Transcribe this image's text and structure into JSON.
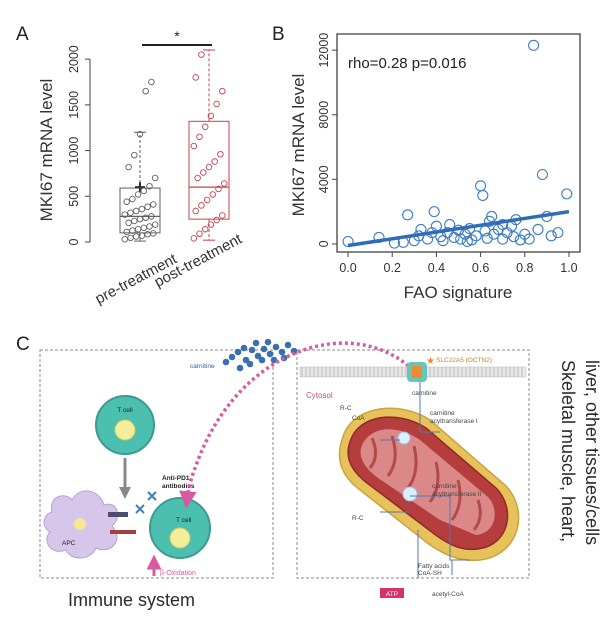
{
  "panel_labels": {
    "a": "A",
    "b": "B",
    "c": "C"
  },
  "colors": {
    "group1": "#606060",
    "group2": "#c9414a",
    "scatter": "#3c7cc2",
    "trend": "#2f6db8",
    "arrow": "#d85aa0",
    "tcell_fill": "#4bbfb0",
    "mito_outer": "#c24a4a",
    "mito_rim": "#e7c25a"
  },
  "chart_data": [
    {
      "type": "boxplot",
      "panel": "A",
      "title": "",
      "xlabel": "",
      "ylabel": "MKI67 mRNA level",
      "ylim": [
        0,
        2100
      ],
      "yticks": [
        0,
        500,
        1000,
        1500,
        2000
      ],
      "ytick_labels": [
        "0",
        "500",
        "1000",
        "1500",
        "2000"
      ],
      "categories": [
        "pre-treatment",
        "post-treatment"
      ],
      "boxes": [
        {
          "name": "pre-treatment",
          "color": "group1",
          "whisker_low": 10,
          "q1": 100,
          "median": 280,
          "q3": 590,
          "whisker_high": 1200,
          "mean": 600,
          "points": [
            30,
            45,
            60,
            70,
            85,
            95,
            110,
            125,
            140,
            155,
            170,
            190,
            210,
            230,
            250,
            265,
            280,
            300,
            320,
            340,
            360,
            385,
            410,
            440,
            470,
            520,
            560,
            610,
            700,
            820,
            950,
            1180,
            1650,
            1750
          ]
        },
        {
          "name": "post-treatment",
          "color": "group2",
          "whisker_low": 20,
          "q1": 250,
          "median": 600,
          "q3": 1320,
          "whisker_high": 2100,
          "mean": 0,
          "points": [
            40,
            90,
            140,
            190,
            240,
            290,
            340,
            400,
            460,
            520,
            580,
            640,
            700,
            760,
            820,
            880,
            960,
            1050,
            1150,
            1260,
            1380,
            1510,
            1650,
            1800,
            2050
          ]
        }
      ],
      "significance": {
        "label": "*",
        "between": [
          "pre-treatment",
          "post-treatment"
        ],
        "level": 2200
      }
    },
    {
      "type": "scatter",
      "panel": "B",
      "title": "",
      "xlabel": "FAO signature",
      "ylabel": "MKI67 mRNA level",
      "xlim": [
        -0.05,
        1.05
      ],
      "ylim": [
        -500,
        13000
      ],
      "xticks": [
        0.0,
        0.2,
        0.4,
        0.6,
        0.8,
        1.0
      ],
      "xtick_labels": [
        "0.0",
        "0.2",
        "0.4",
        "0.6",
        "0.8",
        "1.0"
      ],
      "yticks": [
        0,
        4000,
        8000,
        12000
      ],
      "ytick_labels": [
        "0",
        "4000",
        "8000",
        "12000"
      ],
      "annotation": "rho=0.28 p=0.016",
      "points": [
        [
          0.0,
          150
        ],
        [
          0.14,
          400
        ],
        [
          0.21,
          50
        ],
        [
          0.25,
          100
        ],
        [
          0.27,
          1800
        ],
        [
          0.3,
          200
        ],
        [
          0.32,
          500
        ],
        [
          0.33,
          900
        ],
        [
          0.36,
          300
        ],
        [
          0.38,
          700
        ],
        [
          0.4,
          1100
        ],
        [
          0.42,
          450
        ],
        [
          0.43,
          200
        ],
        [
          0.45,
          700
        ],
        [
          0.46,
          1200
        ],
        [
          0.48,
          400
        ],
        [
          0.5,
          850
        ],
        [
          0.51,
          300
        ],
        [
          0.53,
          600
        ],
        [
          0.55,
          950
        ],
        [
          0.56,
          250
        ],
        [
          0.58,
          500
        ],
        [
          0.6,
          3600
        ],
        [
          0.61,
          3000
        ],
        [
          0.62,
          800
        ],
        [
          0.63,
          350
        ],
        [
          0.64,
          1400
        ],
        [
          0.65,
          1700
        ],
        [
          0.66,
          600
        ],
        [
          0.68,
          900
        ],
        [
          0.7,
          300
        ],
        [
          0.72,
          700
        ],
        [
          0.74,
          1100
        ],
        [
          0.75,
          450
        ],
        [
          0.76,
          1500
        ],
        [
          0.78,
          250
        ],
        [
          0.8,
          600
        ],
        [
          0.82,
          300
        ],
        [
          0.84,
          12300
        ],
        [
          0.86,
          900
        ],
        [
          0.88,
          4300
        ],
        [
          0.9,
          1700
        ],
        [
          0.92,
          500
        ],
        [
          0.95,
          700
        ],
        [
          0.99,
          3100
        ],
        [
          0.39,
          2000
        ],
        [
          0.54,
          150
        ],
        [
          0.7,
          1200
        ]
      ],
      "trend": {
        "x": [
          0.0,
          1.0
        ],
        "y": [
          -100,
          2000
        ]
      }
    }
  ],
  "diagram": {
    "left_box_title": "Immune system",
    "right_box_title": "Skeletal muscle, heart, liver, other tissues/cells",
    "carnitine_label": "carnitine",
    "tcell_top_label": "T cell",
    "tcell_bottom_label": "T cell",
    "apc_label": "APC",
    "antibody_label": "Anti-PD1\nantibodies",
    "beta_ox_label": "β-Oxidation",
    "transporter_label": "SLC22A5 (OCTN2)",
    "cytosol_label": "Cytosol",
    "cpt1_label": "carnitine\nacyltransferase I",
    "cpt2_label": "carnitine\nacyltransferase II",
    "fatty_acid_label": "Fatty acids\nCoA-SH",
    "atp_label": "ATP",
    "acetyl_label": "acetyl-CoA",
    "coa_label": "CoA",
    "rc_label": "R-C",
    "carnitine_small": "carnitine"
  }
}
